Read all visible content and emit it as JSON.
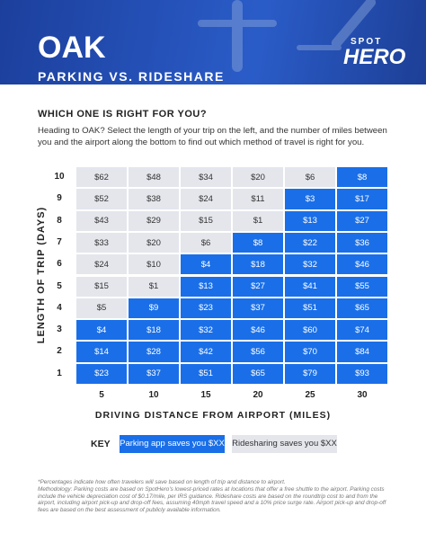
{
  "header": {
    "title": "OAK",
    "subtitle": "PARKING VS. RIDESHARE",
    "logo_top": "SPOT",
    "logo_bottom": "HERO"
  },
  "question": "WHICH ONE IS RIGHT FOR YOU?",
  "intro": "Heading to OAK? Select the length of your trip on the left, and the number of miles between you and the airport along the bottom to find out which method of travel is right for you.",
  "grid": {
    "y_title": "LENGTH OF TRIP (DAYS)",
    "x_title": "DRIVING DISTANCE FROM AIRPORT (MILES)",
    "columns": [
      "5",
      "10",
      "15",
      "20",
      "25",
      "30"
    ],
    "rows": [
      {
        "label": "10",
        "cells": [
          "$62",
          "$48",
          "$34",
          "$20",
          "$6",
          "$8"
        ],
        "key": [
          1,
          1,
          1,
          1,
          1,
          0
        ]
      },
      {
        "label": "9",
        "cells": [
          "$52",
          "$38",
          "$24",
          "$11",
          "$3",
          "$17"
        ],
        "key": [
          1,
          1,
          1,
          1,
          0,
          0
        ]
      },
      {
        "label": "8",
        "cells": [
          "$43",
          "$29",
          "$15",
          "$1",
          "$13",
          "$27"
        ],
        "key": [
          1,
          1,
          1,
          1,
          0,
          0
        ]
      },
      {
        "label": "7",
        "cells": [
          "$33",
          "$20",
          "$6",
          "$8",
          "$22",
          "$36"
        ],
        "key": [
          1,
          1,
          1,
          0,
          0,
          0
        ]
      },
      {
        "label": "6",
        "cells": [
          "$24",
          "$10",
          "$4",
          "$18",
          "$32",
          "$46"
        ],
        "key": [
          1,
          1,
          0,
          0,
          0,
          0
        ]
      },
      {
        "label": "5",
        "cells": [
          "$15",
          "$1",
          "$13",
          "$27",
          "$41",
          "$55"
        ],
        "key": [
          1,
          1,
          0,
          0,
          0,
          0
        ]
      },
      {
        "label": "4",
        "cells": [
          "$5",
          "$9",
          "$23",
          "$37",
          "$51",
          "$65"
        ],
        "key": [
          1,
          0,
          0,
          0,
          0,
          0
        ]
      },
      {
        "label": "3",
        "cells": [
          "$4",
          "$18",
          "$32",
          "$46",
          "$60",
          "$74"
        ],
        "key": [
          0,
          0,
          0,
          0,
          0,
          0
        ]
      },
      {
        "label": "2",
        "cells": [
          "$14",
          "$28",
          "$42",
          "$56",
          "$70",
          "$84"
        ],
        "key": [
          0,
          0,
          0,
          0,
          0,
          0
        ]
      },
      {
        "label": "1",
        "cells": [
          "$23",
          "$37",
          "$51",
          "$65",
          "$79",
          "$93"
        ],
        "key": [
          0,
          0,
          0,
          0,
          0,
          0
        ]
      }
    ]
  },
  "key": {
    "title": "KEY",
    "entries": [
      {
        "label": "Parking app saves you $XX",
        "color": "#1a6fe8",
        "text_color": "#ffffff"
      },
      {
        "label": "Ridesharing saves you $XX",
        "color": "#e4e6ec",
        "text_color": "#333333"
      }
    ]
  },
  "footnote": [
    "*Percentages indicate how often travelers will save based on length of trip and distance to airport.",
    "Methodology: Parking costs are based on SpotHero's lowest-priced rates at locations that offer a free shuttle to the airport. Parking costs include the vehicle depreciation cost of $0.17/mile, per IRS guidance. Rideshare costs are based on the roundtrip cost to and from the airport, including airport pick-up and drop-off fees, assuming 40mph travel speed and a 10% price surge rate. Airport pick-up and drop-off fees are based on the best assessment of publicly available information."
  ]
}
